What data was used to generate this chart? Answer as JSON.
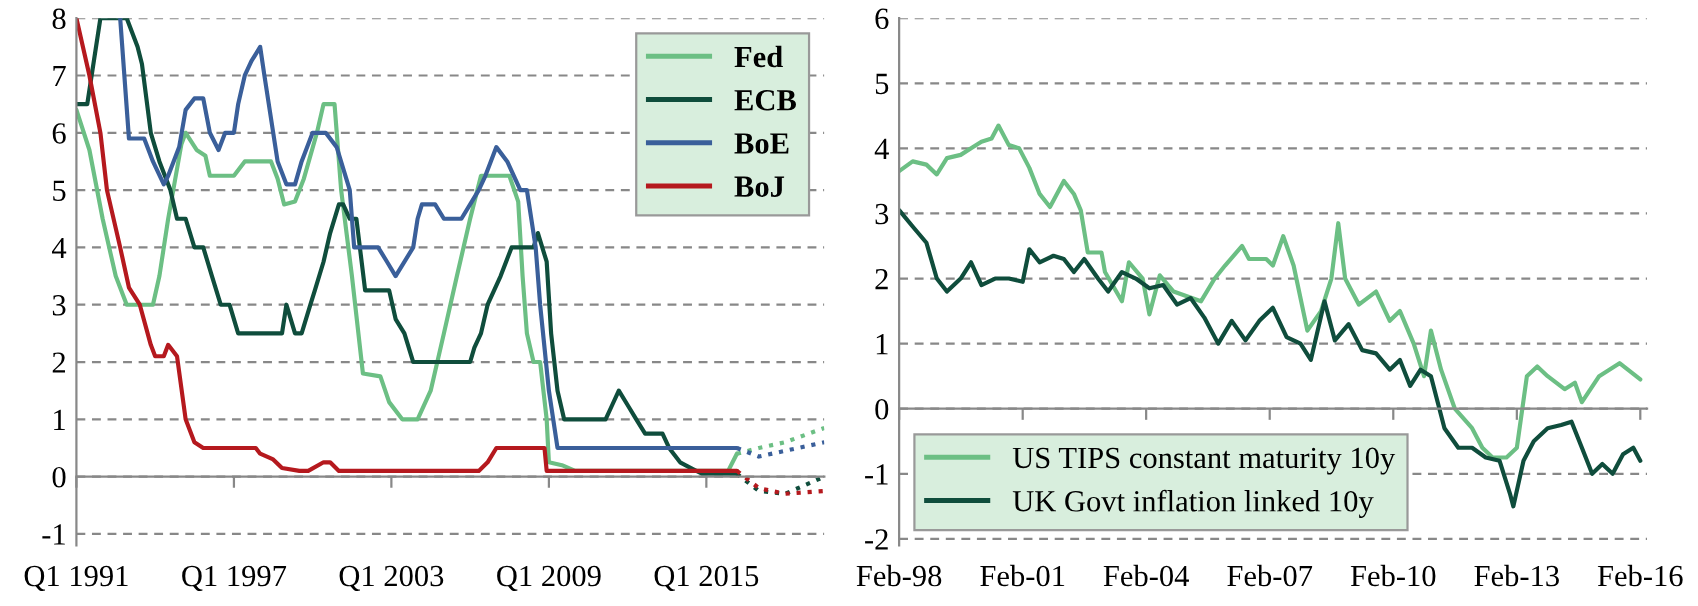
{
  "chart_data": [
    {
      "type": "line",
      "xlim": [
        "1991-01",
        "2019-07"
      ],
      "ylim": [
        -1.2,
        8
      ],
      "xticks": [
        {
          "value": "1991-01",
          "label": "Q1 1991"
        },
        {
          "value": "1997-01",
          "label": "Q1 1997"
        },
        {
          "value": "2003-01",
          "label": "Q1 2003"
        },
        {
          "value": "2009-01",
          "label": "Q1 2009"
        },
        {
          "value": "2015-01",
          "label": "Q1 2015"
        }
      ],
      "yticks": [
        -1,
        0,
        1,
        2,
        3,
        4,
        5,
        6,
        7,
        8
      ],
      "grid": "y",
      "legend": "top right",
      "line_style": "solid",
      "series": [
        {
          "name": "Fed",
          "color": "#6cbf84",
          "x": [
            "1991-01",
            "1991-07",
            "1992-01",
            "1992-07",
            "1992-12",
            "1993-12",
            "1994-03",
            "1994-07",
            "1995-01",
            "1995-03",
            "1995-08",
            "1995-12",
            "1996-02",
            "1997-01",
            "1997-06",
            "1998-06",
            "1998-09",
            "1998-12",
            "1999-05",
            "1999-09",
            "2000-03",
            "2000-06",
            "2000-11",
            "2001-02",
            "2001-07",
            "2001-12",
            "2002-08",
            "2002-12",
            "2003-06",
            "2004-01",
            "2004-07",
            "2005-01",
            "2005-07",
            "2006-01",
            "2006-06",
            "2007-07",
            "2007-11",
            "2008-01",
            "2008-03",
            "2008-06",
            "2008-09",
            "2008-12",
            "2009-01",
            "2009-07",
            "2010-01",
            "2015-11",
            "2016-03"
          ],
          "values": [
            6.4,
            5.7,
            4.5,
            3.5,
            3.0,
            3.0,
            3.5,
            4.5,
            5.8,
            6.0,
            5.7,
            5.6,
            5.25,
            5.25,
            5.5,
            5.5,
            5.2,
            4.75,
            4.8,
            5.2,
            6.0,
            6.5,
            6.5,
            5.0,
            3.5,
            1.8,
            1.75,
            1.3,
            1.0,
            1.0,
            1.5,
            2.5,
            3.5,
            4.5,
            5.25,
            5.25,
            4.8,
            3.5,
            2.5,
            2.0,
            2.0,
            1.0,
            0.25,
            0.2,
            0.1,
            0.1,
            0.4
          ]
        },
        {
          "name": "ECB",
          "color": "#0f4d3c",
          "x": [
            "1991-01",
            "1991-06",
            "1991-12",
            "1992-12",
            "1993-05",
            "1993-07",
            "1993-11",
            "1994-03",
            "1994-08",
            "1994-11",
            "1995-03",
            "1995-07",
            "1995-11",
            "1996-03",
            "1996-07",
            "1996-11",
            "1997-03",
            "1998-11",
            "1999-01",
            "1999-05",
            "1999-08",
            "1999-12",
            "2000-02",
            "2000-06",
            "2000-09",
            "2001-01",
            "2001-03",
            "2001-06",
            "2001-09",
            "2002-01",
            "2002-12",
            "2003-03",
            "2003-07",
            "2003-11",
            "2006-01",
            "2006-03",
            "2006-06",
            "2006-09",
            "2007-03",
            "2007-08",
            "2008-06",
            "2008-08",
            "2008-12",
            "2009-02",
            "2009-05",
            "2009-08",
            "2011-03",
            "2011-06",
            "2011-09",
            "2012-01",
            "2012-05",
            "2012-09",
            "2013-05",
            "2013-08",
            "2014-01",
            "2014-06",
            "2014-11",
            "2016-03"
          ],
          "values": [
            6.5,
            6.5,
            8,
            8,
            7.5,
            7.2,
            6.0,
            5.5,
            5.0,
            4.5,
            4.5,
            4.0,
            4.0,
            3.5,
            3.0,
            3.0,
            2.5,
            2.5,
            3.0,
            2.5,
            2.5,
            3.0,
            3.25,
            3.75,
            4.25,
            4.75,
            4.75,
            4.5,
            4.5,
            3.25,
            3.25,
            2.75,
            2.5,
            2.0,
            2.0,
            2.25,
            2.5,
            3.0,
            3.5,
            4.0,
            4.0,
            4.25,
            3.75,
            2.5,
            1.5,
            1.0,
            1.0,
            1.25,
            1.5,
            1.25,
            1.0,
            0.75,
            0.75,
            0.5,
            0.25,
            0.15,
            0.05,
            0.05
          ]
        },
        {
          "name": "BoE",
          "color": "#3a5f9a",
          "x": [
            "1992-09",
            "1993-01",
            "1993-08",
            "1993-12",
            "1994-05",
            "1994-07",
            "1994-12",
            "1995-03",
            "1995-07",
            "1995-11",
            "1996-02",
            "1996-06",
            "1996-09",
            "1997-01",
            "1997-03",
            "1997-06",
            "1997-09",
            "1998-01",
            "1998-03",
            "1998-09",
            "1999-01",
            "1999-05",
            "1999-08",
            "2000-01",
            "2000-07",
            "2000-12",
            "2001-06",
            "2001-08",
            "2002-07",
            "2002-11",
            "2003-03",
            "2003-11",
            "2004-01",
            "2004-03",
            "2004-09",
            "2005-01",
            "2005-09",
            "2006-01",
            "2006-05",
            "2006-08",
            "2007-01",
            "2007-06",
            "2007-12",
            "2008-03",
            "2008-07",
            "2008-09",
            "2009-01",
            "2009-05",
            "2016-03"
          ],
          "values": [
            8.0,
            5.9,
            5.9,
            5.5,
            5.1,
            5.25,
            5.75,
            6.4,
            6.6,
            6.6,
            6.0,
            5.7,
            6.0,
            6.0,
            6.5,
            7.0,
            7.25,
            7.5,
            7.0,
            5.5,
            5.1,
            5.1,
            5.5,
            6.0,
            6.0,
            5.75,
            5.0,
            4.0,
            4.0,
            3.75,
            3.5,
            4.0,
            4.5,
            4.75,
            4.75,
            4.5,
            4.5,
            4.75,
            5.0,
            5.25,
            5.75,
            5.5,
            5.0,
            5.0,
            4.0,
            3.0,
            1.5,
            0.5,
            0.5
          ]
        },
        {
          "name": "BoJ",
          "color": "#b5191e",
          "x": [
            "1991-01",
            "1991-07",
            "1991-12",
            "1992-03",
            "1992-09",
            "1993-01",
            "1993-06",
            "1993-11",
            "1994-01",
            "1994-05",
            "1994-07",
            "1994-11",
            "1995-03",
            "1995-07",
            "1995-11",
            "1997-11",
            "1998-01",
            "1998-07",
            "1998-11",
            "1999-07",
            "1999-11",
            "2000-06",
            "2000-09",
            "2001-01",
            "2006-05",
            "2006-09",
            "2007-01",
            "2008-11",
            "2008-12",
            "2016-03"
          ],
          "values": [
            8,
            7,
            6,
            5,
            4,
            3.3,
            3.0,
            2.3,
            2.1,
            2.1,
            2.3,
            2.1,
            1.0,
            0.6,
            0.5,
            0.5,
            0.4,
            0.3,
            0.15,
            0.1,
            0.1,
            0.25,
            0.25,
            0.1,
            0.1,
            0.25,
            0.5,
            0.5,
            0.1,
            0.1
          ]
        },
        {
          "color": "#6cbf84",
          "line_style": "dotted",
          "x": [
            "2016-03",
            "2017-01",
            "2018-01",
            "2019-07"
          ],
          "values": [
            0.4,
            0.5,
            0.6,
            0.85
          ]
        },
        {
          "color": "#3a5f9a",
          "line_style": "dotted",
          "x": [
            "2016-03",
            "2017-01",
            "2018-01",
            "2019-07"
          ],
          "values": [
            0.5,
            0.35,
            0.45,
            0.6
          ]
        },
        {
          "color": "#0f4d3c",
          "line_style": "dotted",
          "x": [
            "2016-03",
            "2017-01",
            "2018-01",
            "2019-07"
          ],
          "values": [
            0.05,
            -0.25,
            -0.3,
            0.0
          ]
        },
        {
          "color": "#b5191e",
          "line_style": "dotted",
          "x": [
            "2016-03",
            "2017-01",
            "2018-01",
            "2019-07"
          ],
          "values": [
            0.1,
            -0.2,
            -0.3,
            -0.25
          ]
        }
      ]
    },
    {
      "type": "line",
      "xlim": [
        "1998-02",
        "2016-04"
      ],
      "ylim": [
        -2.1,
        6
      ],
      "xticks": [
        {
          "value": "1998-02",
          "label": "Feb-98"
        },
        {
          "value": "2001-02",
          "label": "Feb-01"
        },
        {
          "value": "2004-02",
          "label": "Feb-04"
        },
        {
          "value": "2007-02",
          "label": "Feb-07"
        },
        {
          "value": "2010-02",
          "label": "Feb-10"
        },
        {
          "value": "2013-02",
          "label": "Feb-13"
        },
        {
          "value": "2016-02",
          "label": "Feb-16"
        }
      ],
      "yticks": [
        -2,
        -1,
        0,
        1,
        2,
        3,
        4,
        5,
        6
      ],
      "grid": "y",
      "legend": "bottom left",
      "line_style": "solid",
      "series": [
        {
          "name": "US TIPS constant maturity 10y",
          "color": "#6cbf84",
          "x": [
            "1998-02",
            "1998-06",
            "1998-10",
            "1999-01",
            "1999-04",
            "1999-08",
            "1999-11",
            "2000-02",
            "2000-05",
            "2000-07",
            "2000-10",
            "2001-01",
            "2001-04",
            "2001-07",
            "2001-10",
            "2002-02",
            "2002-05",
            "2002-07",
            "2002-09",
            "2003-01",
            "2003-02",
            "2003-07",
            "2003-09",
            "2004-01",
            "2004-03",
            "2004-06",
            "2004-10",
            "2005-06",
            "2005-10",
            "2006-01",
            "2006-06",
            "2006-08",
            "2007-01",
            "2007-03",
            "2007-06",
            "2007-09",
            "2008-01",
            "2008-05",
            "2008-08",
            "2008-10",
            "2008-12",
            "2009-04",
            "2009-09",
            "2010-01",
            "2010-04",
            "2010-08",
            "2010-11",
            "2011-01",
            "2011-04",
            "2011-08",
            "2012-01",
            "2012-04",
            "2012-07",
            "2012-11",
            "2013-02",
            "2013-05",
            "2013-08",
            "2013-11",
            "2014-04",
            "2014-07",
            "2014-09",
            "2015-02",
            "2015-08",
            "2016-02"
          ],
          "values": [
            3.65,
            3.8,
            3.75,
            3.6,
            3.85,
            3.9,
            4.0,
            4.1,
            4.15,
            4.35,
            4.05,
            4.0,
            3.7,
            3.3,
            3.1,
            3.5,
            3.3,
            3.05,
            2.4,
            2.4,
            2.1,
            1.65,
            2.25,
            2.0,
            1.45,
            2.05,
            1.8,
            1.65,
            2.0,
            2.2,
            2.5,
            2.3,
            2.3,
            2.2,
            2.65,
            2.2,
            1.2,
            1.5,
            2.0,
            2.85,
            2.0,
            1.6,
            1.8,
            1.35,
            1.5,
            1.0,
            0.5,
            1.2,
            0.6,
            0.0,
            -0.3,
            -0.6,
            -0.75,
            -0.75,
            -0.6,
            0.5,
            0.65,
            0.5,
            0.3,
            0.4,
            0.1,
            0.5,
            0.7,
            0.45
          ]
        },
        {
          "name": "UK Govt inflation linked 10y",
          "color": "#0f4d3c",
          "x": [
            "1998-02",
            "1998-06",
            "1998-10",
            "1999-01",
            "1999-04",
            "1999-08",
            "1999-11",
            "2000-02",
            "2000-06",
            "2000-10",
            "2001-02",
            "2001-04",
            "2001-07",
            "2001-11",
            "2002-02",
            "2002-05",
            "2002-08",
            "2002-12",
            "2003-03",
            "2003-07",
            "2003-11",
            "2004-03",
            "2004-07",
            "2004-11",
            "2005-03",
            "2005-07",
            "2005-11",
            "2006-03",
            "2006-07",
            "2006-11",
            "2007-03",
            "2007-07",
            "2007-11",
            "2008-02",
            "2008-06",
            "2008-09",
            "2009-01",
            "2009-05",
            "2009-09",
            "2010-01",
            "2010-04",
            "2010-07",
            "2010-10",
            "2011-01",
            "2011-05",
            "2011-09",
            "2012-01",
            "2012-05",
            "2012-09",
            "2012-12",
            "2013-01",
            "2013-04",
            "2013-07",
            "2013-11",
            "2014-03",
            "2014-06",
            "2014-09",
            "2014-12",
            "2015-03",
            "2015-06",
            "2015-09",
            "2015-12",
            "2016-02"
          ],
          "values": [
            3.05,
            2.8,
            2.55,
            2.0,
            1.8,
            2.0,
            2.25,
            1.9,
            2.0,
            2.0,
            1.95,
            2.45,
            2.25,
            2.35,
            2.3,
            2.1,
            2.3,
            2.0,
            1.8,
            2.1,
            2.0,
            1.85,
            1.9,
            1.6,
            1.7,
            1.4,
            1.0,
            1.35,
            1.05,
            1.35,
            1.55,
            1.1,
            1.0,
            0.75,
            1.65,
            1.05,
            1.3,
            0.9,
            0.85,
            0.6,
            0.75,
            0.35,
            0.6,
            0.5,
            -0.3,
            -0.6,
            -0.6,
            -0.75,
            -0.8,
            -1.3,
            -1.5,
            -0.8,
            -0.5,
            -0.3,
            -0.25,
            -0.2,
            -0.6,
            -1.0,
            -0.85,
            -1.0,
            -0.7,
            -0.6,
            -0.8
          ]
        }
      ]
    }
  ]
}
